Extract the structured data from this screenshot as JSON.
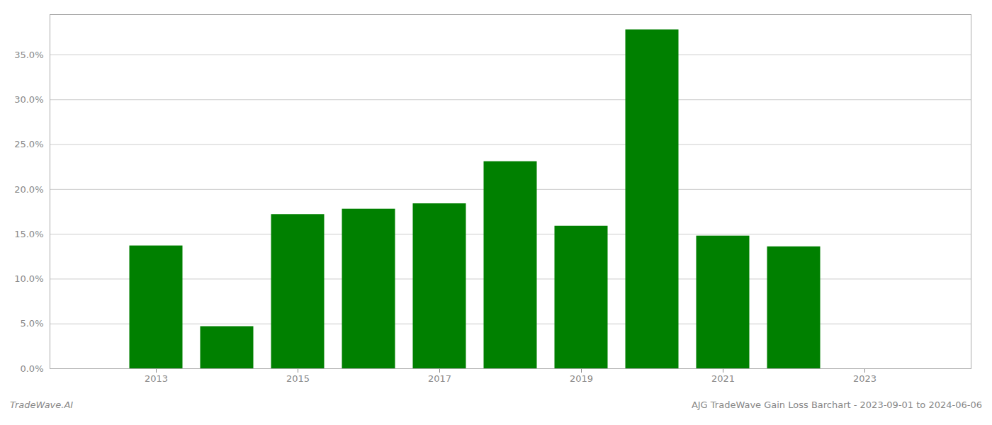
{
  "chart_data": {
    "type": "bar",
    "x": [
      2013,
      2014,
      2015,
      2016,
      2017,
      2018,
      2019,
      2020,
      2021,
      2022
    ],
    "values": [
      0.137,
      0.047,
      0.172,
      0.178,
      0.184,
      0.231,
      0.159,
      0.378,
      0.148,
      0.136
    ],
    "color": "#008000",
    "xlim": [
      2011.5,
      2024.5
    ],
    "xticks": [
      2013,
      2015,
      2017,
      2019,
      2021,
      2023
    ],
    "ylim": [
      0,
      0.395
    ],
    "yticks": [
      {
        "value": 0.0,
        "label": "0.0%"
      },
      {
        "value": 0.05,
        "label": "5.0%"
      },
      {
        "value": 0.1,
        "label": "10.0%"
      },
      {
        "value": 0.15,
        "label": "15.0%"
      },
      {
        "value": 0.2,
        "label": "20.0%"
      },
      {
        "value": 0.25,
        "label": "25.0%"
      },
      {
        "value": 0.3,
        "label": "30.0%"
      },
      {
        "value": 0.35,
        "label": "35.0%"
      }
    ],
    "grid": true,
    "annotations": [
      "TradeWave.AI",
      "AJG TradeWave Gain Loss Barchart - 2023-09-01 to 2024-06-06"
    ]
  }
}
